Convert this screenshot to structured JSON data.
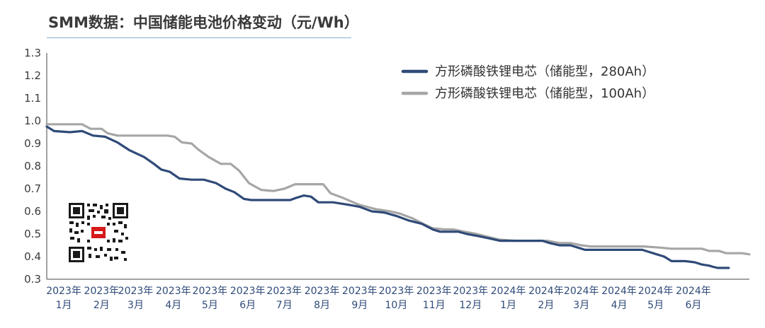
{
  "chart_data": {
    "type": "line",
    "title": "SMM数据：中国储能电池价格变动（元/Wh）",
    "xlabel": "",
    "ylabel": "",
    "ylim": [
      0.3,
      1.3
    ],
    "yticks": [
      "0.3",
      "0.4",
      "0.5",
      "0.6",
      "0.7",
      "0.8",
      "0.9",
      "1.0",
      "1.1",
      "1.2",
      "1.3"
    ],
    "x_start": "2023-01-01",
    "x_end": "2024-07-31",
    "xticks": [
      {
        "date": "2023-01-15",
        "label": "2023年1月"
      },
      {
        "date": "2023-02-15",
        "label": "2023年2月"
      },
      {
        "date": "2023-03-15",
        "label": "2023年3月"
      },
      {
        "date": "2023-04-15",
        "label": "2023年4月"
      },
      {
        "date": "2023-05-15",
        "label": "2023年5月"
      },
      {
        "date": "2023-06-15",
        "label": "2023年6月"
      },
      {
        "date": "2023-07-15",
        "label": "2023年7月"
      },
      {
        "date": "2023-08-15",
        "label": "2023年8月"
      },
      {
        "date": "2023-09-15",
        "label": "2023年9月"
      },
      {
        "date": "2023-10-15",
        "label": "2023年10月"
      },
      {
        "date": "2023-11-15",
        "label": "2023年11月"
      },
      {
        "date": "2023-12-15",
        "label": "2023年12月"
      },
      {
        "date": "2024-01-15",
        "label": "2024年1月"
      },
      {
        "date": "2024-02-15",
        "label": "2024年2月"
      },
      {
        "date": "2024-03-15",
        "label": "2024年3月"
      },
      {
        "date": "2024-04-15",
        "label": "2024年4月"
      },
      {
        "date": "2024-05-15",
        "label": "2024年5月"
      },
      {
        "date": "2024-06-15",
        "label": "2024年6月"
      }
    ],
    "grid": false,
    "legend_position": "top-right",
    "series": [
      {
        "name": "方形磷酸铁锂电芯（储能型，280Ah）",
        "color": "#2f4a78",
        "points": [
          [
            "2023-01-01",
            0.975
          ],
          [
            "2023-01-07",
            0.955
          ],
          [
            "2023-01-20",
            0.95
          ],
          [
            "2023-01-30",
            0.955
          ],
          [
            "2023-02-08",
            0.935
          ],
          [
            "2023-02-18",
            0.93
          ],
          [
            "2023-02-28",
            0.905
          ],
          [
            "2023-03-10",
            0.87
          ],
          [
            "2023-03-22",
            0.84
          ],
          [
            "2023-03-30",
            0.81
          ],
          [
            "2023-04-05",
            0.785
          ],
          [
            "2023-04-12",
            0.775
          ],
          [
            "2023-04-20",
            0.745
          ],
          [
            "2023-04-30",
            0.74
          ],
          [
            "2023-05-10",
            0.74
          ],
          [
            "2023-05-20",
            0.725
          ],
          [
            "2023-05-28",
            0.7
          ],
          [
            "2023-06-04",
            0.685
          ],
          [
            "2023-06-12",
            0.655
          ],
          [
            "2023-06-18",
            0.65
          ],
          [
            "2023-07-01",
            0.65
          ],
          [
            "2023-07-12",
            0.65
          ],
          [
            "2023-07-20",
            0.65
          ],
          [
            "2023-07-25",
            0.66
          ],
          [
            "2023-07-31",
            0.67
          ],
          [
            "2023-08-06",
            0.665
          ],
          [
            "2023-08-12",
            0.64
          ],
          [
            "2023-08-24",
            0.64
          ],
          [
            "2023-09-05",
            0.63
          ],
          [
            "2023-09-15",
            0.62
          ],
          [
            "2023-09-25",
            0.6
          ],
          [
            "2023-10-05",
            0.595
          ],
          [
            "2023-10-15",
            0.58
          ],
          [
            "2023-10-25",
            0.56
          ],
          [
            "2023-11-05",
            0.545
          ],
          [
            "2023-11-14",
            0.52
          ],
          [
            "2023-11-20",
            0.51
          ],
          [
            "2023-11-30",
            0.51
          ],
          [
            "2023-12-05",
            0.51
          ],
          [
            "2023-12-12",
            0.5
          ],
          [
            "2023-12-22",
            0.49
          ],
          [
            "2023-12-31",
            0.48
          ],
          [
            "2024-01-08",
            0.47
          ],
          [
            "2024-01-15",
            0.47
          ],
          [
            "2024-01-25",
            0.47
          ],
          [
            "2024-02-05",
            0.47
          ],
          [
            "2024-02-12",
            0.47
          ],
          [
            "2024-02-18",
            0.46
          ],
          [
            "2024-02-26",
            0.45
          ],
          [
            "2024-03-06",
            0.45
          ],
          [
            "2024-03-12",
            0.44
          ],
          [
            "2024-03-18",
            0.43
          ],
          [
            "2024-03-30",
            0.43
          ],
          [
            "2024-04-10",
            0.43
          ],
          [
            "2024-04-25",
            0.43
          ],
          [
            "2024-05-04",
            0.43
          ],
          [
            "2024-05-10",
            0.42
          ],
          [
            "2024-05-16",
            0.41
          ],
          [
            "2024-05-22",
            0.4
          ],
          [
            "2024-05-28",
            0.38
          ],
          [
            "2024-06-08",
            0.38
          ],
          [
            "2024-06-16",
            0.375
          ],
          [
            "2024-06-22",
            0.365
          ],
          [
            "2024-06-28",
            0.36
          ],
          [
            "2024-07-01",
            0.355
          ],
          [
            "2024-07-05",
            0.35
          ],
          [
            "2024-07-14",
            0.35
          ]
        ]
      },
      {
        "name": "方形磷酸铁锂电芯（储能型，100Ah）",
        "color": "#a6a6a6",
        "points": [
          [
            "2023-01-01",
            0.985
          ],
          [
            "2023-01-20",
            0.985
          ],
          [
            "2023-01-30",
            0.985
          ],
          [
            "2023-02-06",
            0.965
          ],
          [
            "2023-02-15",
            0.965
          ],
          [
            "2023-02-20",
            0.945
          ],
          [
            "2023-02-28",
            0.935
          ],
          [
            "2023-03-15",
            0.935
          ],
          [
            "2023-03-30",
            0.935
          ],
          [
            "2023-04-10",
            0.935
          ],
          [
            "2023-04-16",
            0.93
          ],
          [
            "2023-04-22",
            0.905
          ],
          [
            "2023-04-30",
            0.9
          ],
          [
            "2023-05-05",
            0.875
          ],
          [
            "2023-05-14",
            0.84
          ],
          [
            "2023-05-24",
            0.81
          ],
          [
            "2023-06-01",
            0.81
          ],
          [
            "2023-06-08",
            0.78
          ],
          [
            "2023-06-16",
            0.725
          ],
          [
            "2023-06-26",
            0.695
          ],
          [
            "2023-07-06",
            0.69
          ],
          [
            "2023-07-15",
            0.7
          ],
          [
            "2023-07-24",
            0.72
          ],
          [
            "2023-08-05",
            0.72
          ],
          [
            "2023-08-16",
            0.72
          ],
          [
            "2023-08-22",
            0.68
          ],
          [
            "2023-09-01",
            0.66
          ],
          [
            "2023-09-14",
            0.63
          ],
          [
            "2023-09-28",
            0.61
          ],
          [
            "2023-10-10",
            0.6
          ],
          [
            "2023-10-18",
            0.59
          ],
          [
            "2023-10-28",
            0.57
          ],
          [
            "2023-11-06",
            0.545
          ],
          [
            "2023-11-14",
            0.525
          ],
          [
            "2023-11-24",
            0.52
          ],
          [
            "2023-12-01",
            0.52
          ],
          [
            "2023-12-10",
            0.51
          ],
          [
            "2023-12-20",
            0.5
          ],
          [
            "2023-12-31",
            0.485
          ],
          [
            "2024-01-08",
            0.475
          ],
          [
            "2024-01-20",
            0.47
          ],
          [
            "2024-02-05",
            0.47
          ],
          [
            "2024-02-16",
            0.47
          ],
          [
            "2024-02-26",
            0.46
          ],
          [
            "2024-03-06",
            0.46
          ],
          [
            "2024-03-15",
            0.45
          ],
          [
            "2024-03-22",
            0.445
          ],
          [
            "2024-04-05",
            0.445
          ],
          [
            "2024-04-20",
            0.445
          ],
          [
            "2024-05-05",
            0.445
          ],
          [
            "2024-05-18",
            0.44
          ],
          [
            "2024-05-28",
            0.435
          ],
          [
            "2024-06-10",
            0.435
          ],
          [
            "2024-06-22",
            0.435
          ],
          [
            "2024-06-28",
            0.425
          ],
          [
            "2024-07-06",
            0.425
          ],
          [
            "2024-07-12",
            0.415
          ],
          [
            "2024-07-25",
            0.415
          ],
          [
            "2024-07-31",
            0.41
          ]
        ]
      }
    ]
  }
}
